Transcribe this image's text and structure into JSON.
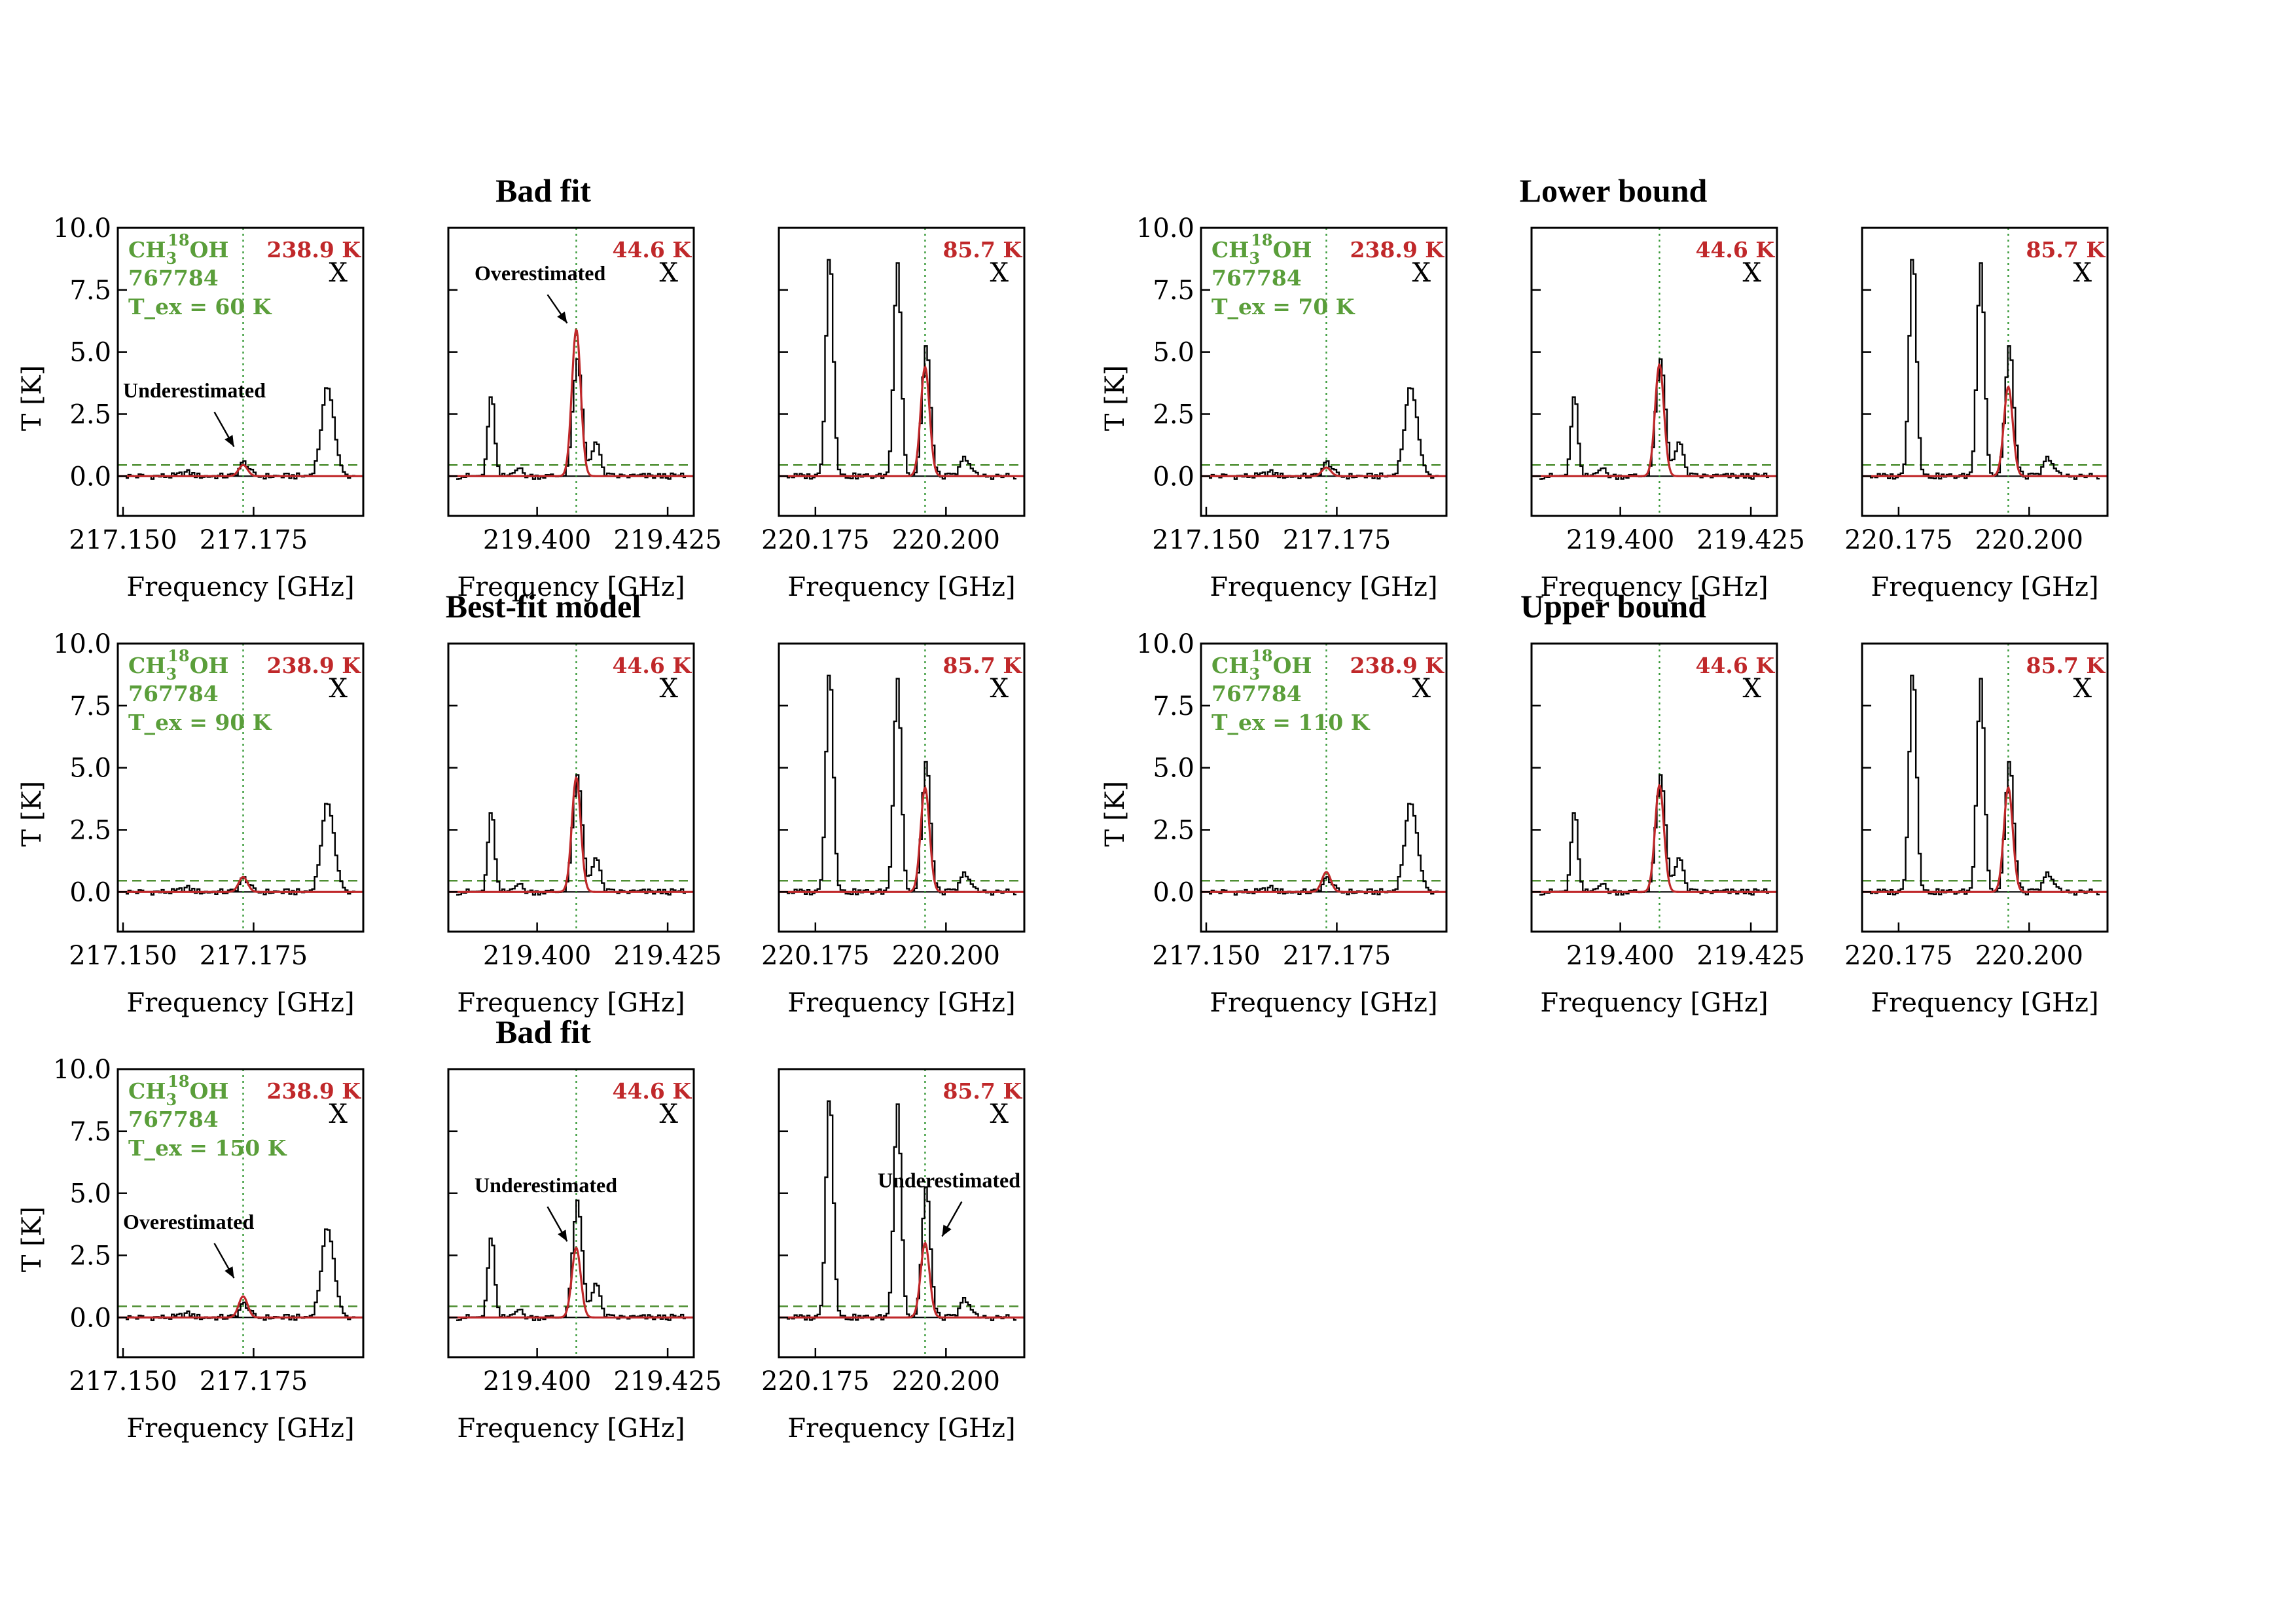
{
  "colors": {
    "data": "#000000",
    "model": "#c0282a",
    "label_green": "#5a9e3a",
    "energy_red": "#c0282a",
    "threshold": "#4f8f33",
    "line_marker": "#3a9a3a"
  },
  "chart_data": {
    "type": "line",
    "molecule": "CH3(18)OH",
    "molecule_parts": {
      "base": "CH",
      "sub": "3",
      "sup": "18",
      "tail": "OH"
    },
    "tag": "767784",
    "flag": "X",
    "xlabel": "Frequency [GHz]",
    "ylabel": "T [K]",
    "ylim": [
      -1.6,
      10.0
    ],
    "yticks": [
      "0.0",
      "2.5",
      "5.0",
      "7.5",
      "10.0"
    ],
    "noise_level": 0.45,
    "columns": [
      {
        "xlim": [
          217.149,
          217.196
        ],
        "xticks": [
          "217.150",
          "217.175"
        ],
        "line_freq": 217.173,
        "eup": "238.9 K"
      },
      {
        "xlim": [
          219.383,
          219.43
        ],
        "xticks": [
          "219.400",
          "219.425"
        ],
        "line_freq": 219.4075,
        "eup": "44.6 K"
      },
      {
        "xlim": [
          220.168,
          220.215
        ],
        "xticks": [
          "220.175",
          "220.200"
        ],
        "line_freq": 220.196,
        "eup": "85.7 K"
      }
    ],
    "observed_peaks": [
      [
        {
          "x": 217.173,
          "amp": 0.55,
          "w": 0.0009
        },
        {
          "x": 217.189,
          "amp": 3.6,
          "w": 0.0012
        },
        {
          "x": 217.162,
          "amp": 0.15,
          "w": 0.001
        }
      ],
      [
        {
          "x": 219.391,
          "amp": 3.35,
          "w": 0.0006
        },
        {
          "x": 219.4075,
          "amp": 4.6,
          "w": 0.0009
        },
        {
          "x": 219.411,
          "amp": 1.4,
          "w": 0.0008
        },
        {
          "x": 219.396,
          "amp": 0.35,
          "w": 0.0008
        }
      ],
      [
        {
          "x": 220.1775,
          "amp": 9.0,
          "w": 0.0007
        },
        {
          "x": 220.1905,
          "amp": 8.7,
          "w": 0.0007
        },
        {
          "x": 220.196,
          "amp": 5.2,
          "w": 0.0008
        },
        {
          "x": 220.2035,
          "amp": 0.75,
          "w": 0.0009
        }
      ]
    ],
    "panel_groups": [
      {
        "title": "Bad fit",
        "tex": "T_ex = 60 K",
        "model_amps": [
          0.45,
          5.9,
          4.4
        ],
        "annotations": [
          {
            "col": 0,
            "text": "Underestimated"
          },
          {
            "col": 1,
            "text": "Overestimated"
          }
        ]
      },
      {
        "title": "Lower bound",
        "tex": "T_ex = 70 K",
        "model_amps": [
          0.35,
          4.5,
          3.6
        ],
        "annotations": []
      },
      {
        "title": "Best-fit model",
        "tex": "T_ex = 90 K",
        "model_amps": [
          0.6,
          4.6,
          4.2
        ],
        "annotations": []
      },
      {
        "title": "Upper bound",
        "tex": "T_ex = 110 K",
        "model_amps": [
          0.8,
          4.3,
          4.2
        ],
        "annotations": []
      },
      {
        "title": "Bad fit",
        "tex": "T_ex = 150 K",
        "model_amps": [
          0.85,
          2.8,
          3.0
        ],
        "annotations": [
          {
            "col": 0,
            "text": "Overestimated"
          },
          {
            "col": 1,
            "text": "Underestimated"
          },
          {
            "col": 2,
            "text": "Underestimated"
          }
        ]
      }
    ]
  }
}
